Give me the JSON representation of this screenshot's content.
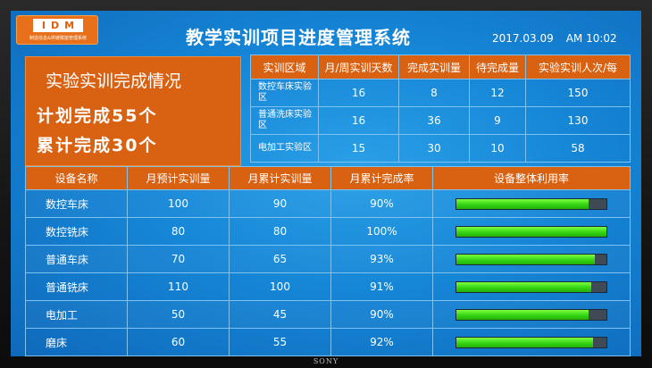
{
  "logo": {
    "main": "IDM",
    "sub": "制造信息&供链赋能管理系统"
  },
  "header": {
    "title": "教学实训项目进度管理系统",
    "date": "2017.03.09",
    "time": "AM 10:02"
  },
  "summary": {
    "heading": "实验实训完成情况",
    "planned": "计划完成55个",
    "completed": "累计完成30个"
  },
  "area_table": {
    "headers": [
      "实训区域",
      "月/周实训天数",
      "完成实训量",
      "待完成量",
      "实验实训人次/每"
    ],
    "rows": [
      {
        "name": "数控车床实验区",
        "days": "16",
        "done": "8",
        "pending": "12",
        "persons": "150"
      },
      {
        "name": "普通洗床实验区",
        "days": "16",
        "done": "36",
        "pending": "9",
        "persons": "130"
      },
      {
        "name": "电加工实验区",
        "days": "15",
        "done": "30",
        "pending": "10",
        "persons": "58"
      }
    ]
  },
  "equip_table": {
    "headers": [
      "设备名称",
      "月预计实训量",
      "月累计实训量",
      "月累计完成率",
      "设备整体利用率"
    ],
    "rows": [
      {
        "name": "数控车床",
        "planned": "100",
        "cumulative": "90",
        "rate": "90%",
        "utilization": 0.88
      },
      {
        "name": "数控铣床",
        "planned": "80",
        "cumulative": "80",
        "rate": "100%",
        "utilization": 1.0
      },
      {
        "name": "普通车床",
        "planned": "70",
        "cumulative": "65",
        "rate": "93%",
        "utilization": 0.92
      },
      {
        "name": "普通铣床",
        "planned": "110",
        "cumulative": "100",
        "rate": "91%",
        "utilization": 0.9
      },
      {
        "name": "电加工",
        "planned": "50",
        "cumulative": "45",
        "rate": "90%",
        "utilization": 0.88
      },
      {
        "name": "磨床",
        "planned": "60",
        "cumulative": "55",
        "rate": "92%",
        "utilization": 0.91
      }
    ]
  },
  "bezel": {
    "brand": "SONY"
  },
  "colors": {
    "orange": "#d96112",
    "screen_blue": "#1686d6",
    "bar_green": "#35d414"
  }
}
